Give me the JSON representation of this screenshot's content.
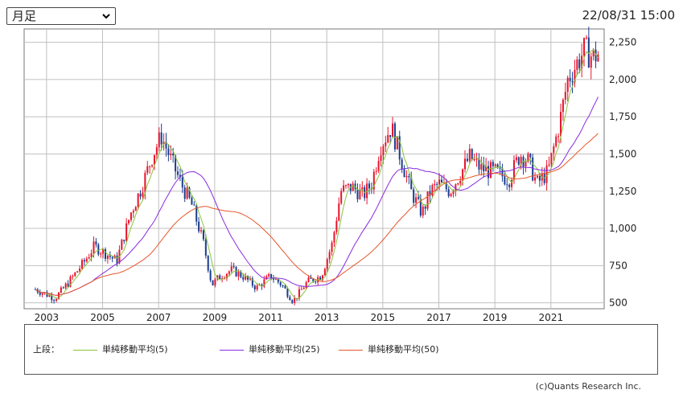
{
  "header": {
    "period_select": {
      "value": "月足"
    },
    "timestamp": "22/08/31 15:00"
  },
  "legend": {
    "prefix": "上段：",
    "items": [
      {
        "label": "単純移動平均(5)",
        "color": "#88c43c"
      },
      {
        "label": "単純移動平均(25)",
        "color": "#8a2be2"
      },
      {
        "label": "単純移動平均(50)",
        "color": "#e8562a"
      }
    ]
  },
  "footer": {
    "copyright": "(c)Quants Research Inc."
  },
  "colors": {
    "up": "#e8152e",
    "down": "#1b3f8f",
    "grid": "#c0c0c0"
  },
  "chart_data": {
    "type": "candlestick",
    "x_labels": [
      "2003",
      "2005",
      "2007",
      "2009",
      "2011",
      "2013",
      "2015",
      "2017",
      "2019",
      "2021"
    ],
    "y_ticks": [
      "500",
      "750",
      "1,000",
      "1,250",
      "1,500",
      "1,750",
      "2,000",
      "2,250"
    ],
    "ylim": [
      460,
      2340
    ],
    "xlim": [
      2002.2,
      2022.9
    ],
    "y_axis_side": "right",
    "grid": true,
    "price_anchors": [
      [
        2002.6,
        590
      ],
      [
        2003.3,
        530
      ],
      [
        2003.8,
        640
      ],
      [
        2004.4,
        790
      ],
      [
        2004.7,
        880
      ],
      [
        2005.2,
        820
      ],
      [
        2005.5,
        780
      ],
      [
        2006.0,
        1100
      ],
      [
        2006.4,
        1280
      ],
      [
        2006.8,
        1500
      ],
      [
        2007.1,
        1620
      ],
      [
        2007.4,
        1480
      ],
      [
        2007.8,
        1300
      ],
      [
        2008.2,
        1150
      ],
      [
        2008.6,
        900
      ],
      [
        2008.9,
        620
      ],
      [
        2009.2,
        680
      ],
      [
        2009.6,
        720
      ],
      [
        2010.0,
        680
      ],
      [
        2010.5,
        600
      ],
      [
        2011.0,
        680
      ],
      [
        2011.4,
        620
      ],
      [
        2011.8,
        510
      ],
      [
        2012.3,
        640
      ],
      [
        2012.8,
        680
      ],
      [
        2013.2,
        900
      ],
      [
        2013.5,
        1250
      ],
      [
        2013.9,
        1280
      ],
      [
        2014.3,
        1220
      ],
      [
        2014.6,
        1300
      ],
      [
        2014.9,
        1550
      ],
      [
        2015.3,
        1680
      ],
      [
        2015.6,
        1500
      ],
      [
        2016.0,
        1250
      ],
      [
        2016.4,
        1100
      ],
      [
        2016.7,
        1250
      ],
      [
        2017.0,
        1300
      ],
      [
        2017.4,
        1250
      ],
      [
        2017.8,
        1380
      ],
      [
        2018.1,
        1480
      ],
      [
        2018.5,
        1400
      ],
      [
        2019.0,
        1380
      ],
      [
        2019.5,
        1330
      ],
      [
        2019.9,
        1500
      ],
      [
        2020.2,
        1450
      ],
      [
        2020.5,
        1300
      ],
      [
        2020.9,
        1380
      ],
      [
        2021.3,
        1700
      ],
      [
        2021.6,
        2000
      ],
      [
        2021.9,
        2100
      ],
      [
        2022.2,
        2200
      ],
      [
        2022.5,
        2150
      ],
      [
        2022.65,
        2170
      ]
    ],
    "series": [
      {
        "name": "単純移動平均(5)",
        "window": 5
      },
      {
        "name": "単純移動平均(25)",
        "window": 25
      },
      {
        "name": "単純移動平均(50)",
        "window": 50
      }
    ]
  }
}
